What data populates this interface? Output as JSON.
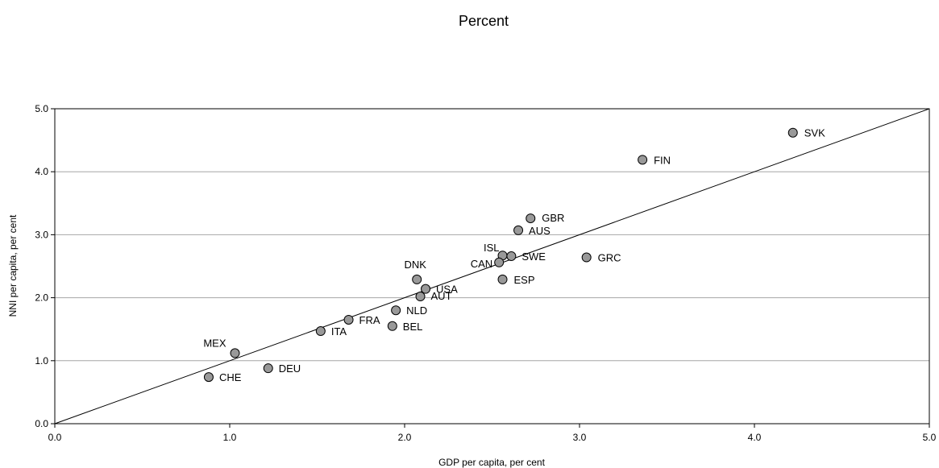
{
  "chart_data": {
    "type": "scatter",
    "title": "Percent",
    "xlabel": "GDP per capita, per cent",
    "ylabel": "NNI per capita, per cent",
    "xlim": [
      0,
      5
    ],
    "ylim": [
      0,
      5
    ],
    "xticks": [
      "0.0",
      "1.0",
      "2.0",
      "3.0",
      "4.0",
      "5.0"
    ],
    "yticks": [
      "0.0",
      "1.0",
      "2.0",
      "3.0",
      "4.0",
      "5.0"
    ],
    "grid": "horizontal",
    "reference_line": {
      "from": [
        0,
        0
      ],
      "to": [
        5,
        5
      ]
    },
    "marker_color": "#999999",
    "points": [
      {
        "label": "SVK",
        "x": 4.22,
        "y": 4.62
      },
      {
        "label": "FIN",
        "x": 3.36,
        "y": 4.19
      },
      {
        "label": "GBR",
        "x": 2.72,
        "y": 3.26
      },
      {
        "label": "AUS",
        "x": 2.65,
        "y": 3.07
      },
      {
        "label": "GRC",
        "x": 3.04,
        "y": 2.64
      },
      {
        "label": "ISL",
        "x": 2.56,
        "y": 2.67
      },
      {
        "label": "SWE",
        "x": 2.61,
        "y": 2.66
      },
      {
        "label": "CAN",
        "x": 2.54,
        "y": 2.56
      },
      {
        "label": "ESP",
        "x": 2.56,
        "y": 2.29
      },
      {
        "label": "DNK",
        "x": 2.07,
        "y": 2.29
      },
      {
        "label": "USA",
        "x": 2.12,
        "y": 2.14
      },
      {
        "label": "AUT",
        "x": 2.09,
        "y": 2.02
      },
      {
        "label": "NLD",
        "x": 1.95,
        "y": 1.8
      },
      {
        "label": "FRA",
        "x": 1.68,
        "y": 1.65
      },
      {
        "label": "BEL",
        "x": 1.93,
        "y": 1.55
      },
      {
        "label": "ITA",
        "x": 1.52,
        "y": 1.47
      },
      {
        "label": "MEX",
        "x": 1.03,
        "y": 1.12
      },
      {
        "label": "DEU",
        "x": 1.22,
        "y": 0.88
      },
      {
        "label": "CHE",
        "x": 0.88,
        "y": 0.74
      }
    ]
  }
}
